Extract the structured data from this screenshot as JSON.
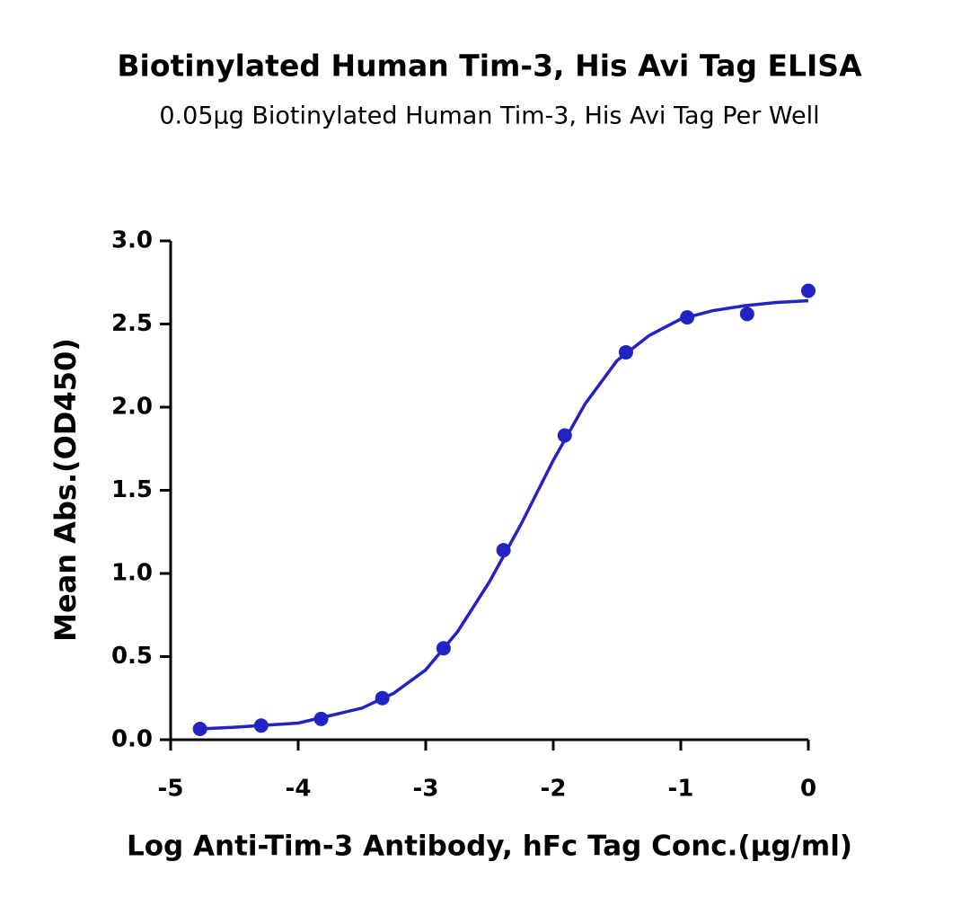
{
  "chart_data": {
    "type": "scatter",
    "title": "Biotinylated Human Tim-3, His Avi Tag ELISA",
    "subtitle": "0.05μg Biotinylated Human Tim-3, His Avi Tag Per Well",
    "x_label": "Log Anti-Tim-3 Antibody, hFc Tag Conc.(μg/ml)",
    "y_label": "Mean Abs.(OD450)",
    "xlim": [
      -5,
      0
    ],
    "xticks": [
      -5,
      -4,
      -3,
      -2,
      -1,
      0
    ],
    "ylim": [
      0,
      3
    ],
    "yticks": [
      {
        "value": 0,
        "label": "0.0"
      },
      0.5,
      {
        "value": 1,
        "label": "1.0"
      },
      1.5,
      {
        "value": 2,
        "label": "2.0"
      },
      2.5,
      {
        "value": 3,
        "label": "3.0"
      }
    ],
    "color": "#2323c4",
    "x": [
      -4.77,
      -4.29,
      -3.82,
      -3.34,
      -2.86,
      -2.39,
      -1.91,
      -1.43,
      -0.95,
      -0.48,
      0
    ],
    "values": [
      0.065,
      0.085,
      0.125,
      0.25,
      0.55,
      1.14,
      1.83,
      2.33,
      2.54,
      2.56,
      2.7
    ],
    "curve": {
      "x": [
        -4.77,
        -4.5,
        -4.0,
        -3.5,
        -3.25,
        -3.0,
        -2.75,
        -2.5,
        -2.25,
        -2.0,
        -1.75,
        -1.5,
        -1.25,
        -1.0,
        -0.75,
        -0.5,
        -0.25,
        0
      ],
      "values": [
        0.065,
        0.075,
        0.1,
        0.19,
        0.28,
        0.42,
        0.65,
        0.95,
        1.3,
        1.68,
        2.02,
        2.28,
        2.43,
        2.53,
        2.58,
        2.61,
        2.63,
        2.64
      ]
    }
  }
}
